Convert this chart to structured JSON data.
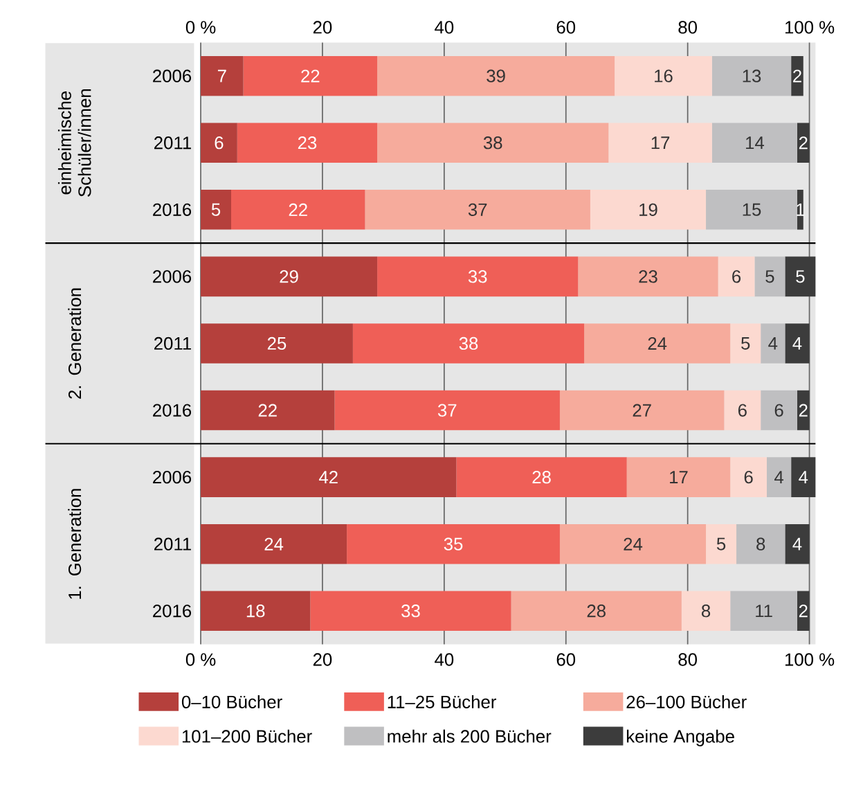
{
  "chart_data": {
    "type": "bar",
    "orientation": "horizontal",
    "stacked": true,
    "data_labels": true,
    "grid": "x",
    "legend": "bottom",
    "categories": [
      "2006",
      "2011",
      "2016",
      "2006",
      "2011",
      "2016",
      "2006",
      "2011",
      "2016"
    ],
    "annotations": [
      "einheimische Schüler/innen",
      "2. Generation",
      "1. Generation"
    ],
    "series": [
      {
        "name": "0–10 Bücher",
        "color": "#b5403c",
        "values": [
          7,
          6,
          5,
          29,
          25,
          22,
          42,
          24,
          18
        ]
      },
      {
        "name": "11–25 Bücher",
        "color": "#ef5f57",
        "values": [
          22,
          23,
          22,
          33,
          38,
          37,
          28,
          35,
          33
        ]
      },
      {
        "name": "26–100 Bücher",
        "color": "#f6ab9c",
        "values": [
          39,
          38,
          37,
          23,
          24,
          27,
          17,
          24,
          28
        ]
      },
      {
        "name": "101–200 Bücher",
        "color": "#fcd9d0",
        "values": [
          16,
          17,
          19,
          6,
          5,
          6,
          6,
          5,
          8
        ]
      },
      {
        "name": "mehr als 200 Bücher",
        "color": "#bfbfc1",
        "values": [
          13,
          14,
          15,
          5,
          4,
          6,
          4,
          8,
          11
        ]
      },
      {
        "name": "keine Angabe",
        "color": "#3c3c3c",
        "values": [
          2,
          2,
          1,
          5,
          4,
          2,
          4,
          4,
          2
        ]
      }
    ],
    "xlim": [
      0,
      101
    ],
    "xticks": [
      {
        "value": 0,
        "label": "0 %"
      },
      20,
      40,
      60,
      80,
      {
        "value": 100,
        "label": "100 %"
      }
    ],
    "x2lim": [
      0,
      101
    ],
    "x2ticks": [
      {
        "value": 0,
        "label": "0 %"
      },
      20,
      40,
      60,
      80,
      {
        "value": 100,
        "label": "100 %"
      }
    ]
  }
}
